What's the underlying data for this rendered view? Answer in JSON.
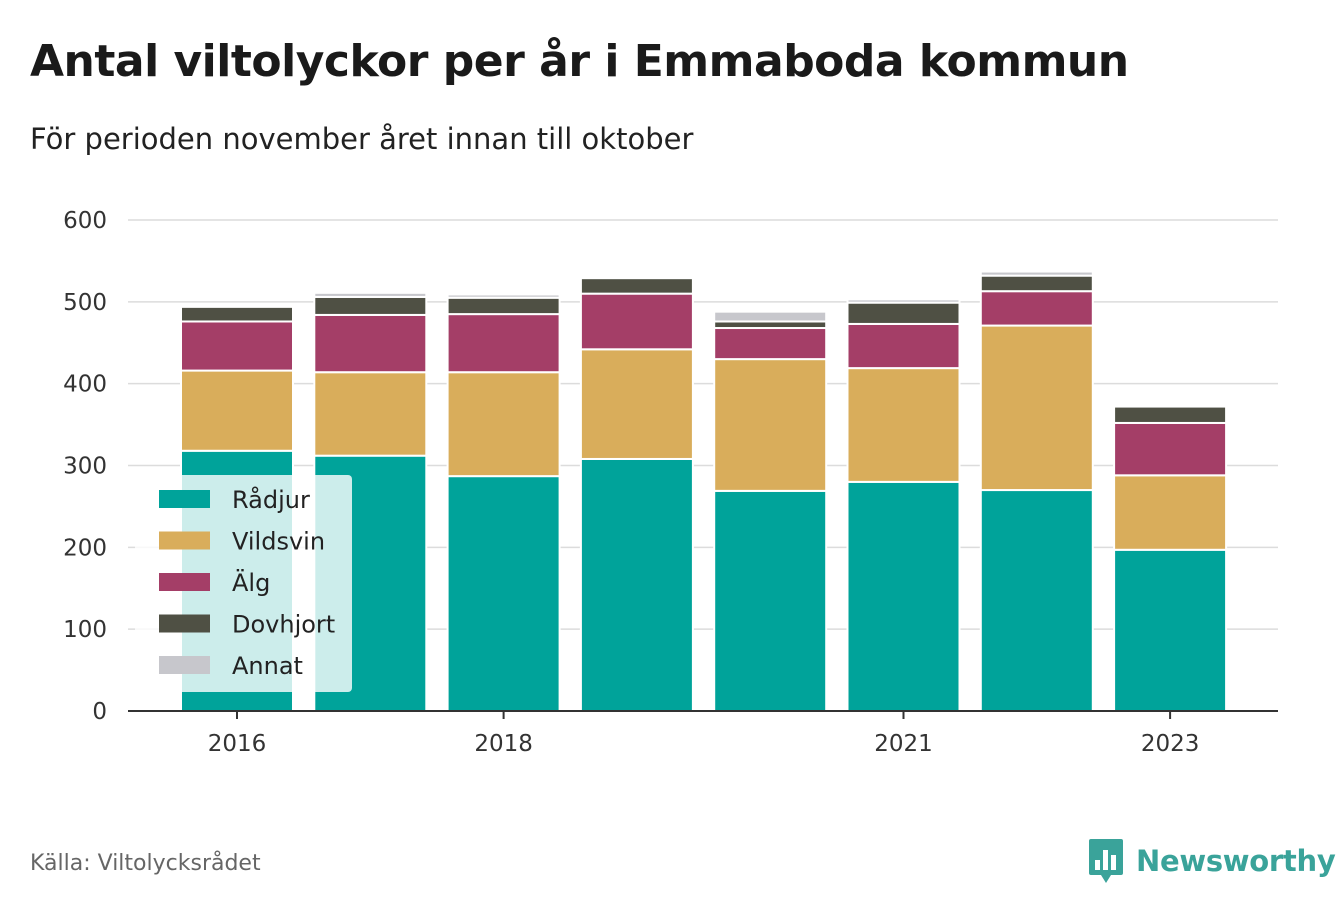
{
  "header": {
    "title": "Antal viltolyckor per år i Emmaboda kommun",
    "subtitle": "För perioden november året innan till oktober"
  },
  "footer": {
    "source": "Källa: Viltolycksrådet",
    "brand": "Newsworthy",
    "brand_icon": "bar-chart-logo-icon"
  },
  "chart_data": {
    "type": "bar",
    "stacked": true,
    "x": [
      2016,
      2017,
      2018,
      2019,
      2020,
      2021,
      2022,
      2023
    ],
    "x_tick_labels": [
      "2016",
      "2018",
      "2021",
      "2023"
    ],
    "x_ticks": [
      2016,
      2018,
      2021,
      2023
    ],
    "ylim": [
      0,
      600
    ],
    "y_ticks": [
      0,
      100,
      200,
      300,
      400,
      500,
      600
    ],
    "grid": true,
    "legend_position": "bottom-left",
    "series": [
      {
        "name": "Rådjur",
        "color": "#00a39a",
        "values": [
          318,
          312,
          287,
          308,
          269,
          280,
          270,
          197
        ]
      },
      {
        "name": "Vildsvin",
        "color": "#d9ad5b",
        "values": [
          98,
          102,
          127,
          134,
          161,
          139,
          201,
          91
        ]
      },
      {
        "name": "Älg",
        "color": "#a43e67",
        "values": [
          60,
          70,
          71,
          68,
          38,
          54,
          42,
          64
        ]
      },
      {
        "name": "Dovhjort",
        "color": "#4f5044",
        "values": [
          18,
          22,
          20,
          19,
          8,
          26,
          19,
          20
        ]
      },
      {
        "name": "Annat",
        "color": "#c7c7cc",
        "values": [
          2,
          5,
          4,
          2,
          12,
          4,
          5,
          0
        ]
      }
    ]
  }
}
